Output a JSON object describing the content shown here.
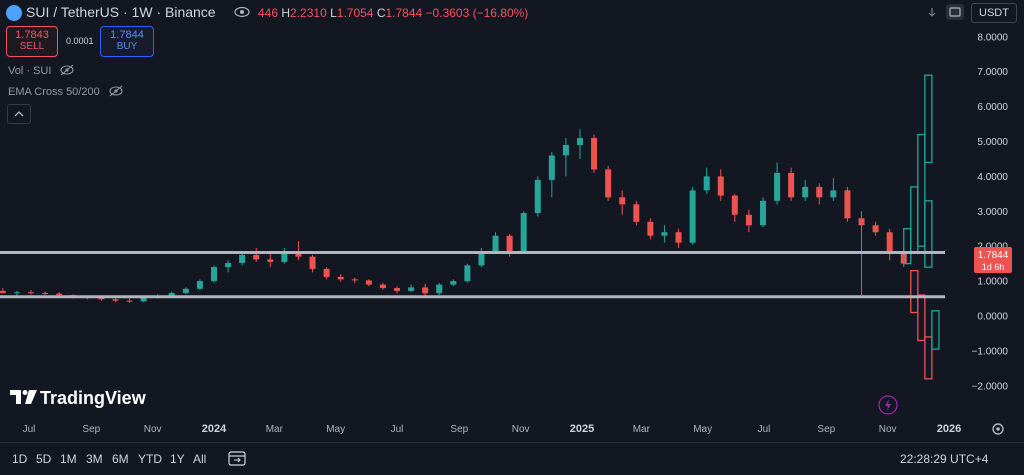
{
  "header": {
    "symbol_title": "SUI / TetherUS · 1W · Binance",
    "ohlc_prefix": "446",
    "high_label": "H",
    "high": "2.2310",
    "low_label": "L",
    "low": "1.7054",
    "close_label": "C",
    "close": "1.7844",
    "change": "−0.3603 (−16.80%)"
  },
  "trade": {
    "sell_price": "1.7843",
    "sell_label": "SELL",
    "spread": "0.0001",
    "buy_price": "1.7844",
    "buy_label": "BUY"
  },
  "indicators": {
    "vol": "Vol · SUI",
    "ema": "EMA Cross 50/200"
  },
  "currency_button": "USDT",
  "price_axis": {
    "labels": [
      "8.0000",
      "7.0000",
      "6.0000",
      "5.0000",
      "4.0000",
      "3.0000",
      "2.0000",
      "1.0000",
      "0.0000",
      "−1.0000",
      "−2.0000"
    ],
    "current_price": "1.7844",
    "countdown": "1d 6h"
  },
  "time_axis": {
    "labels": [
      "Jul",
      "Sep",
      "Nov",
      "2024",
      "Mar",
      "May",
      "Jul",
      "Sep",
      "Nov",
      "2025",
      "Mar",
      "May",
      "Jul",
      "Sep",
      "Nov",
      "2026"
    ]
  },
  "branding": {
    "name": "TradingView"
  },
  "timeframes": [
    "1D",
    "5D",
    "1M",
    "3M",
    "6M",
    "YTD",
    "1Y",
    "All"
  ],
  "clock": "22:28:29 UTC+4",
  "colors": {
    "up": "#26a69a",
    "down": "#ef5350",
    "background": "#131722"
  },
  "chart_data": {
    "type": "candlestick",
    "symbol": "SUI / TetherUS",
    "interval": "1W",
    "exchange": "Binance",
    "ylim": [
      -2.4,
      8.4
    ],
    "horizontal_lines": [
      1.82,
      0.55
    ],
    "candles": [
      {
        "x": "2023-06-05",
        "o": 0.72,
        "h": 0.8,
        "l": 0.64,
        "c": 0.66
      },
      {
        "x": "2023-06-19",
        "o": 0.66,
        "h": 0.72,
        "l": 0.58,
        "c": 0.68
      },
      {
        "x": "2023-07-03",
        "o": 0.68,
        "h": 0.74,
        "l": 0.62,
        "c": 0.66
      },
      {
        "x": "2023-07-17",
        "o": 0.66,
        "h": 0.7,
        "l": 0.6,
        "c": 0.64
      },
      {
        "x": "2023-07-31",
        "o": 0.64,
        "h": 0.68,
        "l": 0.56,
        "c": 0.6
      },
      {
        "x": "2023-08-14",
        "o": 0.6,
        "h": 0.62,
        "l": 0.5,
        "c": 0.54
      },
      {
        "x": "2023-08-28",
        "o": 0.54,
        "h": 0.58,
        "l": 0.48,
        "c": 0.52
      },
      {
        "x": "2023-09-11",
        "o": 0.52,
        "h": 0.55,
        "l": 0.44,
        "c": 0.48
      },
      {
        "x": "2023-09-25",
        "o": 0.48,
        "h": 0.52,
        "l": 0.4,
        "c": 0.44
      },
      {
        "x": "2023-10-09",
        "o": 0.44,
        "h": 0.5,
        "l": 0.38,
        "c": 0.42
      },
      {
        "x": "2023-10-23",
        "o": 0.42,
        "h": 0.56,
        "l": 0.4,
        "c": 0.54
      },
      {
        "x": "2023-11-06",
        "o": 0.54,
        "h": 0.62,
        "l": 0.5,
        "c": 0.58
      },
      {
        "x": "2023-11-20",
        "o": 0.58,
        "h": 0.7,
        "l": 0.55,
        "c": 0.66
      },
      {
        "x": "2023-12-04",
        "o": 0.66,
        "h": 0.82,
        "l": 0.62,
        "c": 0.78
      },
      {
        "x": "2023-12-18",
        "o": 0.78,
        "h": 1.05,
        "l": 0.74,
        "c": 1.0
      },
      {
        "x": "2024-01-01",
        "o": 1.0,
        "h": 1.45,
        "l": 0.95,
        "c": 1.4
      },
      {
        "x": "2024-01-15",
        "o": 1.4,
        "h": 1.6,
        "l": 1.25,
        "c": 1.52
      },
      {
        "x": "2024-01-29",
        "o": 1.52,
        "h": 1.85,
        "l": 1.45,
        "c": 1.75
      },
      {
        "x": "2024-02-12",
        "o": 1.75,
        "h": 1.95,
        "l": 1.55,
        "c": 1.62
      },
      {
        "x": "2024-02-26",
        "o": 1.62,
        "h": 1.8,
        "l": 1.4,
        "c": 1.55
      },
      {
        "x": "2024-03-11",
        "o": 1.55,
        "h": 1.95,
        "l": 1.5,
        "c": 1.85
      },
      {
        "x": "2024-03-25",
        "o": 1.85,
        "h": 2.15,
        "l": 1.6,
        "c": 1.7
      },
      {
        "x": "2024-04-08",
        "o": 1.7,
        "h": 1.75,
        "l": 1.25,
        "c": 1.35
      },
      {
        "x": "2024-04-22",
        "o": 1.35,
        "h": 1.4,
        "l": 1.05,
        "c": 1.12
      },
      {
        "x": "2024-05-06",
        "o": 1.12,
        "h": 1.2,
        "l": 0.98,
        "c": 1.05
      },
      {
        "x": "2024-05-20",
        "o": 1.05,
        "h": 1.1,
        "l": 0.95,
        "c": 1.02
      },
      {
        "x": "2024-06-03",
        "o": 1.02,
        "h": 1.05,
        "l": 0.85,
        "c": 0.9
      },
      {
        "x": "2024-06-17",
        "o": 0.9,
        "h": 0.95,
        "l": 0.75,
        "c": 0.8
      },
      {
        "x": "2024-07-01",
        "o": 0.8,
        "h": 0.85,
        "l": 0.65,
        "c": 0.72
      },
      {
        "x": "2024-07-15",
        "o": 0.72,
        "h": 0.9,
        "l": 0.68,
        "c": 0.82
      },
      {
        "x": "2024-07-29",
        "o": 0.82,
        "h": 0.92,
        "l": 0.55,
        "c": 0.65
      },
      {
        "x": "2024-08-12",
        "o": 0.65,
        "h": 0.95,
        "l": 0.6,
        "c": 0.9
      },
      {
        "x": "2024-08-26",
        "o": 0.9,
        "h": 1.05,
        "l": 0.85,
        "c": 1.0
      },
      {
        "x": "2024-09-09",
        "o": 1.0,
        "h": 1.5,
        "l": 0.95,
        "c": 1.45
      },
      {
        "x": "2024-09-23",
        "o": 1.45,
        "h": 1.95,
        "l": 1.4,
        "c": 1.85
      },
      {
        "x": "2024-10-07",
        "o": 1.85,
        "h": 2.4,
        "l": 1.8,
        "c": 2.3
      },
      {
        "x": "2024-10-21",
        "o": 2.3,
        "h": 2.35,
        "l": 1.7,
        "c": 1.85
      },
      {
        "x": "2024-11-04",
        "o": 1.85,
        "h": 3.0,
        "l": 1.8,
        "c": 2.95
      },
      {
        "x": "2024-11-18",
        "o": 2.95,
        "h": 4.0,
        "l": 2.85,
        "c": 3.9
      },
      {
        "x": "2024-12-02",
        "o": 3.9,
        "h": 4.7,
        "l": 3.4,
        "c": 4.6
      },
      {
        "x": "2024-12-16",
        "o": 4.6,
        "h": 5.1,
        "l": 4.0,
        "c": 4.9
      },
      {
        "x": "2024-12-30",
        "o": 4.9,
        "h": 5.35,
        "l": 4.5,
        "c": 5.1
      },
      {
        "x": "2025-01-13",
        "o": 5.1,
        "h": 5.2,
        "l": 4.1,
        "c": 4.2
      },
      {
        "x": "2025-01-27",
        "o": 4.2,
        "h": 4.3,
        "l": 3.3,
        "c": 3.4
      },
      {
        "x": "2025-02-10",
        "o": 3.4,
        "h": 3.6,
        "l": 2.9,
        "c": 3.2
      },
      {
        "x": "2025-02-24",
        "o": 3.2,
        "h": 3.3,
        "l": 2.6,
        "c": 2.7
      },
      {
        "x": "2025-03-10",
        "o": 2.7,
        "h": 2.8,
        "l": 2.2,
        "c": 2.3
      },
      {
        "x": "2025-03-24",
        "o": 2.3,
        "h": 2.6,
        "l": 2.1,
        "c": 2.4
      },
      {
        "x": "2025-04-07",
        "o": 2.4,
        "h": 2.5,
        "l": 1.95,
        "c": 2.1
      },
      {
        "x": "2025-04-21",
        "o": 2.1,
        "h": 3.7,
        "l": 2.05,
        "c": 3.6
      },
      {
        "x": "2025-05-05",
        "o": 3.6,
        "h": 4.25,
        "l": 3.5,
        "c": 4.0
      },
      {
        "x": "2025-05-19",
        "o": 4.0,
        "h": 4.2,
        "l": 3.3,
        "c": 3.45
      },
      {
        "x": "2025-06-02",
        "o": 3.45,
        "h": 3.5,
        "l": 2.7,
        "c": 2.9
      },
      {
        "x": "2025-06-16",
        "o": 2.9,
        "h": 3.05,
        "l": 2.4,
        "c": 2.6
      },
      {
        "x": "2025-06-30",
        "o": 2.6,
        "h": 3.4,
        "l": 2.55,
        "c": 3.3
      },
      {
        "x": "2025-07-14",
        "o": 3.3,
        "h": 4.4,
        "l": 3.2,
        "c": 4.1
      },
      {
        "x": "2025-07-28",
        "o": 4.1,
        "h": 4.25,
        "l": 3.3,
        "c": 3.4
      },
      {
        "x": "2025-08-11",
        "o": 3.4,
        "h": 3.9,
        "l": 3.3,
        "c": 3.7
      },
      {
        "x": "2025-08-25",
        "o": 3.7,
        "h": 3.8,
        "l": 3.2,
        "c": 3.4
      },
      {
        "x": "2025-09-08",
        "o": 3.4,
        "h": 3.95,
        "l": 3.3,
        "c": 3.6
      },
      {
        "x": "2025-09-22",
        "o": 3.6,
        "h": 3.7,
        "l": 2.7,
        "c": 2.8
      },
      {
        "x": "2025-10-06",
        "o": 2.8,
        "h": 3.0,
        "l": 0.6,
        "c": 2.6
      },
      {
        "x": "2025-10-20",
        "o": 2.6,
        "h": 2.7,
        "l": 2.3,
        "c": 2.4
      },
      {
        "x": "2025-11-03",
        "o": 2.4,
        "h": 2.5,
        "l": 1.6,
        "c": 1.8
      },
      {
        "x": "2025-11-17",
        "o": 1.8,
        "h": 1.9,
        "l": 1.4,
        "c": 1.5
      }
    ],
    "boxes": [
      {
        "x0": "2025-11-17",
        "x1": "2025-11-24",
        "bottom": 1.5,
        "top": 2.5,
        "color": "#26a69a"
      },
      {
        "x0": "2025-11-24",
        "x1": "2025-12-01",
        "bottom": 1.8,
        "top": 3.7,
        "color": "#26a69a"
      },
      {
        "x0": "2025-12-01",
        "x1": "2025-12-08",
        "bottom": 2.0,
        "top": 5.2,
        "color": "#26a69a"
      },
      {
        "x0": "2025-12-08",
        "x1": "2025-12-15",
        "bottom": 4.4,
        "top": 6.9,
        "color": "#26a69a"
      },
      {
        "x0": "2025-11-24",
        "x1": "2025-12-01",
        "bottom": 0.1,
        "top": 1.3,
        "color": "#ef5350"
      },
      {
        "x0": "2025-12-01",
        "x1": "2025-12-08",
        "bottom": -0.7,
        "top": 0.6,
        "color": "#ef5350"
      },
      {
        "x0": "2025-12-08",
        "x1": "2025-12-15",
        "bottom": -1.8,
        "top": -0.6,
        "color": "#ef5350"
      },
      {
        "x0": "2025-12-08",
        "x1": "2025-12-15",
        "bottom": 1.4,
        "top": 3.3,
        "color": "#26a69a"
      },
      {
        "x0": "2025-12-15",
        "x1": "2025-12-22",
        "bottom": -0.95,
        "top": 0.15,
        "color": "#26a69a"
      }
    ]
  }
}
